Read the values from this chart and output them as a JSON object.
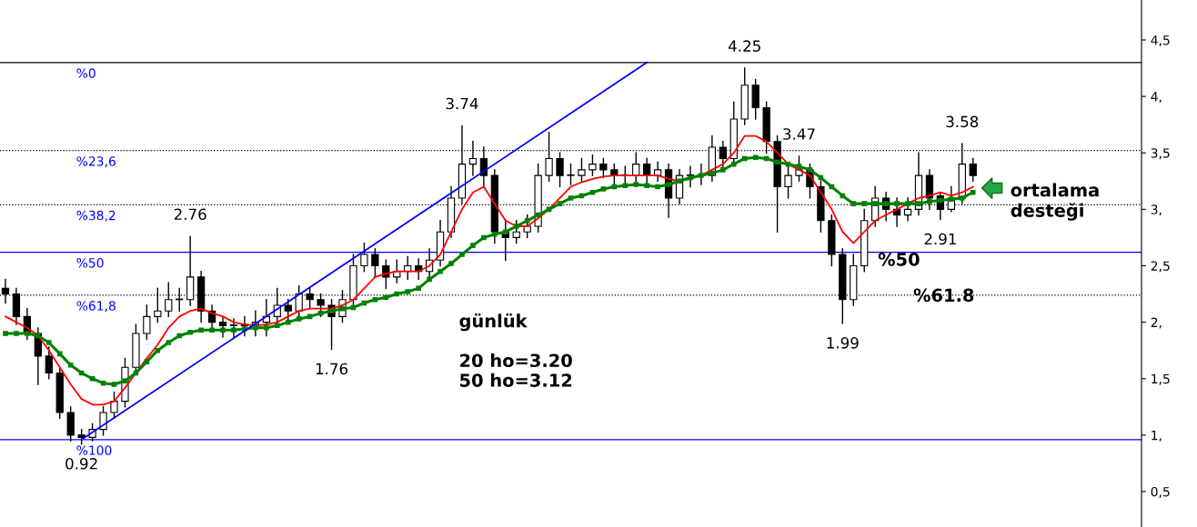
{
  "chart_data": {
    "type": "candlestick",
    "categories": [
      null,
      null,
      null,
      null,
      null,
      null,
      null,
      null,
      null,
      null,
      null,
      null,
      null,
      null,
      null,
      null,
      null,
      null,
      null,
      null,
      null,
      null,
      null,
      null,
      null,
      null,
      null,
      null,
      null,
      null,
      null,
      null,
      null,
      null,
      null,
      null,
      null,
      null,
      null,
      null,
      null,
      null,
      null,
      null,
      null,
      null,
      null,
      null,
      null,
      null,
      null,
      null,
      null,
      null,
      null,
      null,
      null,
      null,
      null,
      null,
      null,
      null,
      null,
      null,
      null,
      null,
      null,
      null,
      null,
      null,
      null,
      null,
      null,
      null,
      null,
      null,
      null,
      null,
      null,
      null,
      null,
      null,
      null,
      null,
      null,
      null,
      null,
      null,
      null,
      null
    ],
    "ohlc": [
      [
        2.3,
        2.38,
        2.17,
        2.25
      ],
      [
        2.25,
        2.3,
        1.98,
        2.05
      ],
      [
        2.05,
        2.12,
        1.85,
        1.9
      ],
      [
        1.9,
        1.95,
        1.45,
        1.7
      ],
      [
        1.7,
        1.78,
        1.5,
        1.55
      ],
      [
        1.55,
        1.6,
        1.15,
        1.2
      ],
      [
        1.2,
        1.25,
        0.95,
        1.0
      ],
      [
        1.0,
        1.05,
        0.92,
        0.98
      ],
      [
        0.98,
        1.1,
        0.95,
        1.05
      ],
      [
        1.05,
        1.25,
        1.0,
        1.2
      ],
      [
        1.2,
        1.38,
        1.15,
        1.3
      ],
      [
        1.3,
        1.68,
        1.25,
        1.6
      ],
      [
        1.6,
        1.98,
        1.55,
        1.9
      ],
      [
        1.9,
        2.15,
        1.85,
        2.05
      ],
      [
        2.05,
        2.3,
        2.0,
        2.1
      ],
      [
        2.1,
        2.35,
        2.05,
        2.2
      ],
      [
        2.2,
        2.3,
        2.1,
        2.2
      ],
      [
        2.2,
        2.76,
        2.15,
        2.4
      ],
      [
        2.4,
        2.45,
        2.0,
        2.1
      ],
      [
        2.1,
        2.15,
        1.95,
        2.0
      ],
      [
        2.0,
        2.05,
        1.87,
        1.97
      ],
      [
        1.97,
        2.03,
        1.87,
        1.97
      ],
      [
        1.97,
        2.05,
        1.88,
        1.98
      ],
      [
        1.98,
        2.1,
        1.88,
        2.0
      ],
      [
        2.0,
        2.2,
        1.88,
        2.05
      ],
      [
        2.05,
        2.3,
        2.0,
        2.15
      ],
      [
        2.15,
        2.2,
        2.02,
        2.1
      ],
      [
        2.1,
        2.32,
        2.05,
        2.25
      ],
      [
        2.25,
        2.3,
        2.12,
        2.2
      ],
      [
        2.2,
        2.25,
        2.05,
        2.15
      ],
      [
        2.15,
        2.2,
        1.76,
        2.05
      ],
      [
        2.05,
        2.28,
        2.0,
        2.2
      ],
      [
        2.2,
        2.6,
        2.15,
        2.5
      ],
      [
        2.5,
        2.7,
        2.45,
        2.6
      ],
      [
        2.6,
        2.65,
        2.4,
        2.5
      ],
      [
        2.5,
        2.55,
        2.3,
        2.4
      ],
      [
        2.4,
        2.55,
        2.35,
        2.45
      ],
      [
        2.45,
        2.58,
        2.38,
        2.5
      ],
      [
        2.5,
        2.56,
        2.38,
        2.45
      ],
      [
        2.45,
        2.65,
        2.4,
        2.55
      ],
      [
        2.55,
        2.9,
        2.5,
        2.8
      ],
      [
        2.8,
        3.2,
        2.75,
        3.1
      ],
      [
        3.1,
        3.74,
        3.05,
        3.4
      ],
      [
        3.4,
        3.6,
        3.3,
        3.45
      ],
      [
        3.45,
        3.55,
        3.2,
        3.3
      ],
      [
        3.3,
        3.35,
        2.7,
        2.8
      ],
      [
        2.8,
        2.9,
        2.55,
        2.75
      ],
      [
        2.75,
        2.9,
        2.7,
        2.8
      ],
      [
        2.8,
        2.95,
        2.75,
        2.85
      ],
      [
        2.85,
        3.4,
        2.8,
        3.3
      ],
      [
        3.3,
        3.68,
        3.25,
        3.45
      ],
      [
        3.45,
        3.5,
        3.2,
        3.3
      ],
      [
        3.3,
        3.4,
        3.22,
        3.3
      ],
      [
        3.3,
        3.45,
        3.25,
        3.35
      ],
      [
        3.35,
        3.48,
        3.3,
        3.4
      ],
      [
        3.4,
        3.45,
        3.28,
        3.35
      ],
      [
        3.35,
        3.4,
        3.22,
        3.3
      ],
      [
        3.3,
        3.38,
        3.22,
        3.3
      ],
      [
        3.3,
        3.5,
        3.25,
        3.4
      ],
      [
        3.4,
        3.45,
        3.22,
        3.3
      ],
      [
        3.3,
        3.42,
        3.25,
        3.35
      ],
      [
        3.35,
        3.4,
        2.93,
        3.1
      ],
      [
        3.1,
        3.35,
        3.05,
        3.3
      ],
      [
        3.3,
        3.38,
        3.2,
        3.3
      ],
      [
        3.3,
        3.4,
        3.22,
        3.3
      ],
      [
        3.3,
        3.65,
        3.25,
        3.55
      ],
      [
        3.55,
        3.6,
        3.35,
        3.45
      ],
      [
        3.45,
        3.95,
        3.4,
        3.8
      ],
      [
        3.8,
        4.25,
        3.75,
        4.1
      ],
      [
        4.1,
        4.15,
        3.8,
        3.9
      ],
      [
        3.9,
        3.95,
        3.5,
        3.6
      ],
      [
        3.6,
        3.65,
        2.8,
        3.2
      ],
      [
        3.2,
        3.4,
        3.1,
        3.3
      ],
      [
        3.3,
        3.47,
        3.25,
        3.35
      ],
      [
        3.35,
        3.4,
        3.1,
        3.2
      ],
      [
        3.2,
        3.25,
        2.8,
        2.9
      ],
      [
        2.9,
        2.95,
        2.5,
        2.6
      ],
      [
        2.6,
        2.65,
        1.99,
        2.2
      ],
      [
        2.2,
        2.6,
        2.15,
        2.5
      ],
      [
        2.5,
        3.0,
        2.45,
        2.9
      ],
      [
        2.9,
        3.2,
        2.85,
        3.1
      ],
      [
        3.1,
        3.15,
        2.9,
        3.0
      ],
      [
        3.0,
        3.1,
        2.85,
        2.95
      ],
      [
        2.95,
        3.1,
        2.9,
        3.0
      ],
      [
        3.0,
        3.5,
        2.95,
        3.3
      ],
      [
        3.3,
        3.35,
        3.0,
        3.1
      ],
      [
        3.12,
        3.15,
        2.91,
        3.0
      ],
      [
        3.0,
        3.2,
        2.98,
        3.1
      ],
      [
        3.1,
        3.58,
        3.05,
        3.4
      ],
      [
        3.4,
        3.45,
        3.25,
        3.3
      ]
    ],
    "series": [
      {
        "type": "line",
        "color": "#ff0000",
        "marker": "none",
        "values": [
          2.05,
          2.0,
          1.95,
          1.88,
          1.75,
          1.6,
          1.45,
          1.32,
          1.27,
          1.27,
          1.3,
          1.42,
          1.55,
          1.68,
          1.8,
          1.95,
          2.05,
          2.1,
          2.12,
          2.08,
          2.05,
          2.0,
          1.98,
          1.97,
          1.98,
          2.0,
          2.05,
          2.1,
          2.12,
          2.12,
          2.12,
          2.15,
          2.2,
          2.3,
          2.4,
          2.43,
          2.45,
          2.45,
          2.45,
          2.5,
          2.6,
          2.8,
          3.0,
          3.15,
          3.2,
          3.05,
          2.9,
          2.85,
          2.85,
          2.92,
          3.0,
          3.1,
          3.2,
          3.24,
          3.27,
          3.29,
          3.3,
          3.3,
          3.3,
          3.3,
          3.3,
          3.27,
          3.25,
          3.27,
          3.3,
          3.35,
          3.4,
          3.5,
          3.65,
          3.65,
          3.6,
          3.5,
          3.4,
          3.35,
          3.3,
          3.15,
          3.0,
          2.8,
          2.7,
          2.8,
          2.9,
          2.95,
          3.0,
          3.05,
          3.1,
          3.12,
          3.15,
          3.12,
          3.15,
          3.2
        ]
      },
      {
        "type": "line",
        "color": "#008000",
        "marker": "square",
        "values": [
          1.9,
          1.9,
          1.9,
          1.88,
          1.82,
          1.72,
          1.62,
          1.55,
          1.5,
          1.46,
          1.45,
          1.48,
          1.55,
          1.65,
          1.75,
          1.82,
          1.88,
          1.91,
          1.93,
          1.93,
          1.93,
          1.93,
          1.94,
          1.95,
          1.95,
          1.97,
          2.0,
          2.03,
          2.05,
          2.08,
          2.1,
          2.12,
          2.13,
          2.17,
          2.2,
          2.22,
          2.25,
          2.27,
          2.3,
          2.38,
          2.45,
          2.52,
          2.6,
          2.68,
          2.75,
          2.78,
          2.8,
          2.85,
          2.9,
          2.95,
          3.0,
          3.05,
          3.1,
          3.12,
          3.15,
          3.18,
          3.2,
          3.21,
          3.22,
          3.21,
          3.2,
          3.22,
          3.25,
          3.28,
          3.3,
          3.32,
          3.35,
          3.4,
          3.45,
          3.46,
          3.45,
          3.42,
          3.4,
          3.38,
          3.35,
          3.28,
          3.2,
          3.12,
          3.05,
          3.05,
          3.05,
          3.05,
          3.05,
          3.05,
          3.05,
          3.07,
          3.08,
          3.09,
          3.1,
          3.15
        ]
      },
      {
        "type": "line",
        "color": "#0000ff",
        "marker": "none",
        "values": [
          null,
          null,
          null,
          null,
          null,
          null,
          null,
          0.96,
          null,
          null,
          null,
          null,
          null,
          null,
          null,
          null,
          null,
          null,
          null,
          null,
          null,
          null,
          null,
          null,
          null,
          null,
          null,
          null,
          null,
          null,
          null,
          null,
          null,
          null,
          null,
          null,
          null,
          null,
          null,
          null,
          null,
          null,
          null,
          null,
          null,
          null,
          null,
          null,
          null,
          null,
          null,
          null,
          null,
          null,
          null,
          null,
          null,
          null,
          null,
          4.3,
          null,
          null,
          null,
          null,
          null,
          null,
          null,
          null,
          null,
          null,
          null,
          null,
          null,
          null,
          null,
          null,
          null,
          null,
          null,
          null,
          null,
          null,
          null,
          null,
          null,
          null,
          null,
          null,
          null,
          null
        ]
      }
    ],
    "ref_lines": [
      {
        "axis": "y",
        "value": 4.3,
        "color": "#000000",
        "line_style": "solid"
      },
      {
        "axis": "y",
        "value": 3.52,
        "color": "#000000",
        "line_style": "dotted"
      },
      {
        "axis": "y",
        "value": 3.04,
        "color": "#000000",
        "line_style": "dotted"
      },
      {
        "axis": "y",
        "value": 2.62,
        "color": "#0000ff",
        "line_style": "solid"
      },
      {
        "axis": "y",
        "value": 2.24,
        "color": "#000000",
        "line_style": "dotted"
      },
      {
        "axis": "y",
        "value": 0.96,
        "color": "#0000ff",
        "line_style": "solid"
      }
    ],
    "annotations": [
      {
        "text": "%0",
        "y": 4.3
      },
      {
        "text": "%23,6",
        "y": 3.52
      },
      {
        "text": "%38,2",
        "y": 3.04
      },
      {
        "text": "%50",
        "y": 2.62
      },
      {
        "text": "%61,8",
        "y": 2.24
      },
      {
        "text": "%100",
        "y": 0.96
      },
      {
        "text": "0.92",
        "y": 0.92
      },
      {
        "text": "2.76",
        "y": 2.76
      },
      {
        "text": "1.76",
        "y": 1.76
      },
      {
        "text": "3.74",
        "y": 3.74
      },
      {
        "text": "4.25",
        "y": 4.25
      },
      {
        "text": "3.47",
        "y": 3.47
      },
      {
        "text": "3.58",
        "y": 3.58
      },
      {
        "text": "1.99",
        "y": 1.99
      },
      {
        "text": "2.91",
        "y": 2.91
      },
      "günlük\n\n20 ho=3.20\n50 ho=3.12",
      "ortalama\ndesteği",
      "%50",
      "%61.8"
    ],
    "ylim": [
      0.186,
      4.854
    ],
    "yticks": [
      {
        "value": 0.5,
        "label": "0,5"
      },
      {
        "value": 1,
        "label": "1,"
      },
      {
        "value": 1.5,
        "label": "1,5"
      },
      {
        "value": 2,
        "label": "2,"
      },
      {
        "value": 2.5,
        "label": "2,5"
      },
      {
        "value": 3,
        "label": "3,"
      },
      {
        "value": 3.5,
        "label": "3,5"
      },
      {
        "value": 4,
        "label": "4,"
      },
      {
        "value": 4.5,
        "label": "4,5"
      }
    ],
    "grid": false,
    "legend": false
  }
}
